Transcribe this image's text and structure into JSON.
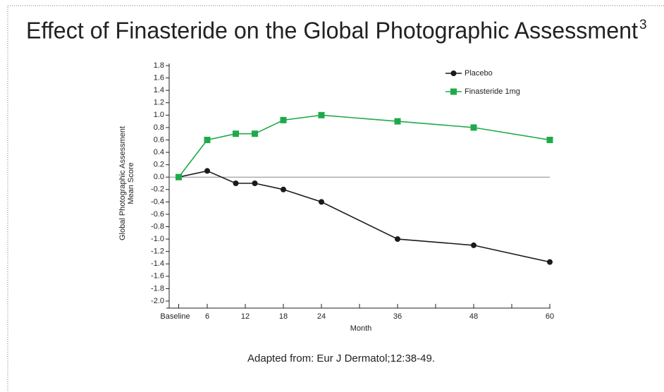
{
  "chart_data": {
    "type": "line",
    "title": "Effect of Finasteride on the Global Photographic Assessment",
    "title_superscript": "3",
    "y_label": [
      "Global Photographic Assessment",
      "Mean Score"
    ],
    "x_label": "Month",
    "footnote": "Adapted from: Eur J Dermatol;12:38-49.",
    "x": [
      1.5,
      6,
      10.5,
      13.5,
      18,
      24,
      36,
      48,
      60
    ],
    "series": [
      {
        "name": "Placebo",
        "color": "#1a1a1a",
        "marker": "circle",
        "values": [
          0,
          0.1,
          -0.1,
          -0.1,
          -0.2,
          -0.4,
          -1.0,
          -1.1,
          -1.37
        ]
      },
      {
        "name": "Finasteride 1mg",
        "color": "#1faa4a",
        "marker": "square",
        "values": [
          0,
          0.6,
          0.7,
          0.7,
          0.92,
          1.0,
          0.9,
          0.8,
          0.6
        ]
      }
    ],
    "xlim": [
      0,
      60
    ],
    "xticks": [
      {
        "value": 1.5,
        "label": "Baseline"
      },
      6,
      12,
      18,
      24,
      36,
      48,
      60
    ],
    "xminorticks": [
      30,
      42,
      54
    ],
    "ylim": [
      -2.0,
      1.8
    ],
    "yticks": [
      1.8,
      1.6,
      1.4,
      1.2,
      {
        "value": 1,
        "label": "1.0"
      },
      0.8,
      0.6,
      0.4,
      0.2,
      {
        "value": 0,
        "label": "0.0"
      },
      -0.2,
      -0.4,
      -0.6,
      -0.8,
      {
        "value": -1,
        "label": "-1.0"
      },
      -1.2,
      -1.4,
      -1.6,
      -1.8,
      {
        "value": -2,
        "label": "-2.0"
      }
    ],
    "zero_line": true,
    "legend": "top-right"
  }
}
